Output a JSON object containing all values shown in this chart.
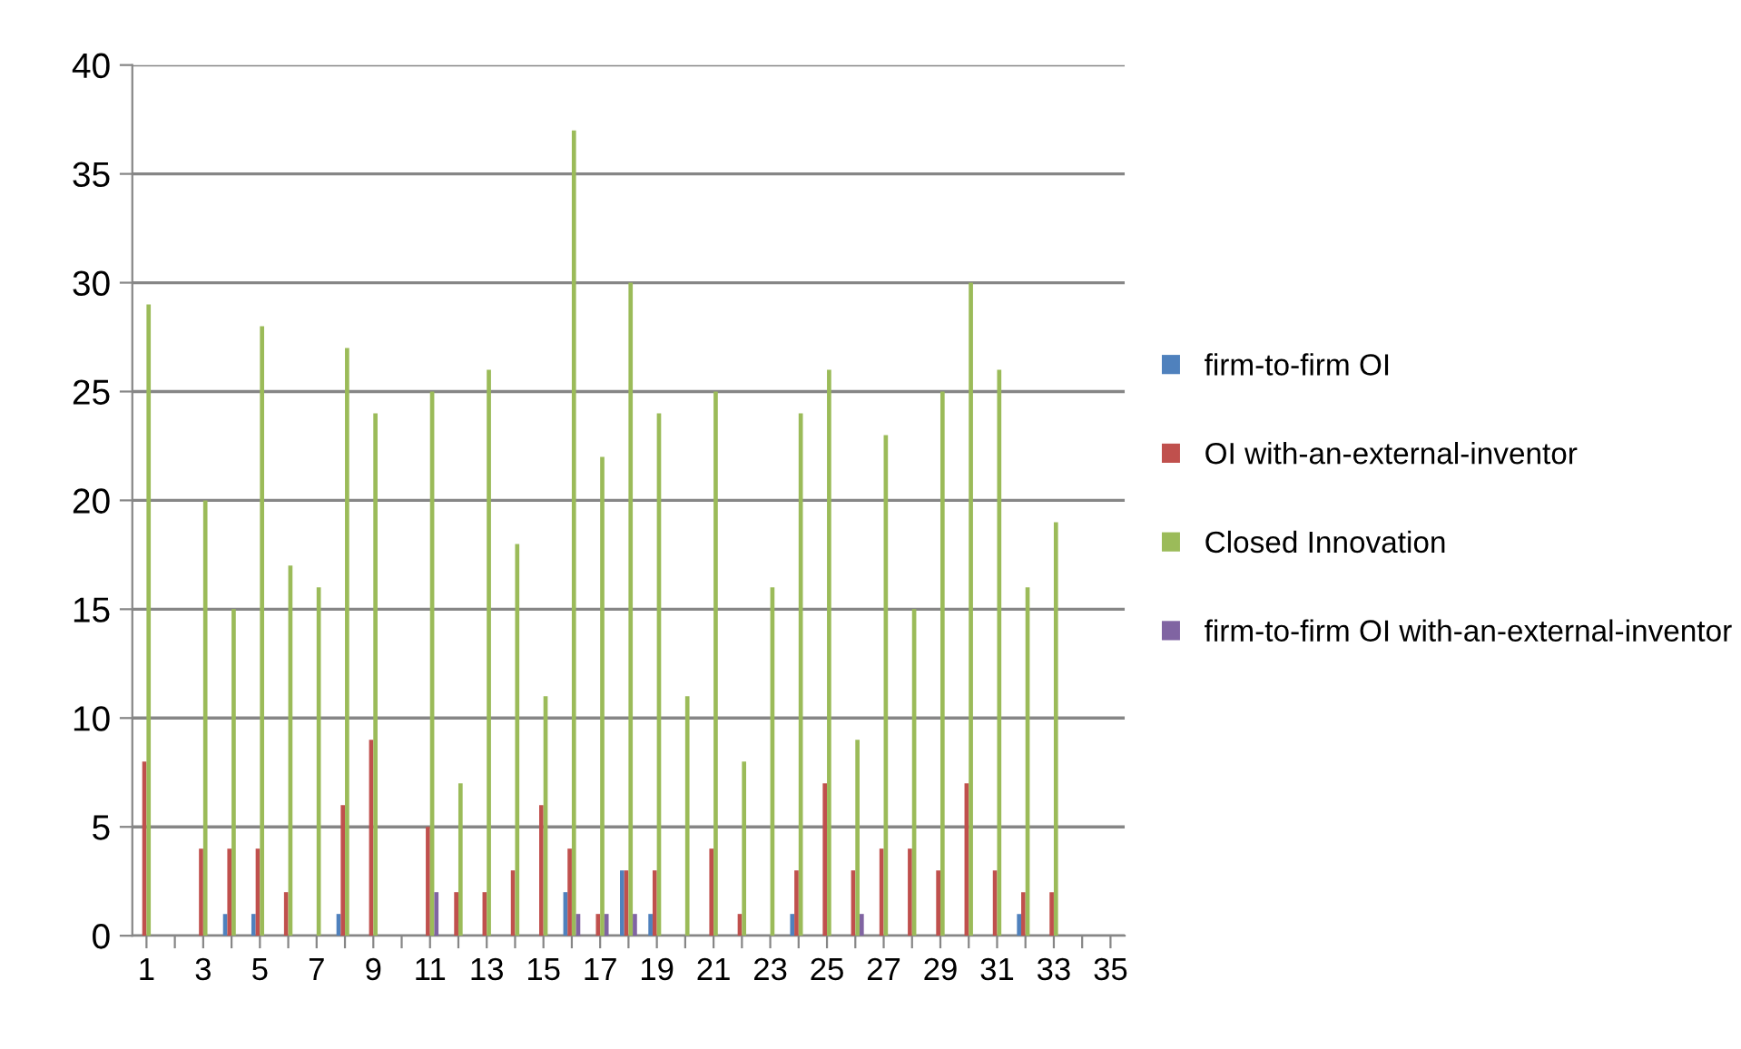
{
  "chart_data": {
    "type": "bar",
    "categories": [
      "1",
      null,
      "3",
      null,
      "5",
      null,
      "7",
      null,
      "9",
      null,
      "11",
      null,
      "13",
      null,
      "15",
      null,
      "17",
      null,
      "19",
      null,
      "21",
      null,
      "23",
      null,
      "25",
      null,
      "27",
      null,
      "29",
      null,
      "31",
      null,
      "33",
      null,
      "35"
    ],
    "series": [
      {
        "name": "firm-to-firm OI",
        "color": "#4f81bd",
        "values": [
          0,
          0,
          0,
          1,
          1,
          0,
          0,
          1,
          0,
          0,
          0,
          0,
          0,
          0,
          0,
          2,
          0,
          3,
          1,
          0,
          0,
          0,
          0,
          1,
          0,
          0,
          0,
          0,
          0,
          0,
          0,
          1,
          0,
          0,
          0
        ]
      },
      {
        "name": "OI with-an-external-inventor",
        "color": "#c0504d",
        "values": [
          8,
          0,
          4,
          4,
          4,
          2,
          0,
          6,
          9,
          0,
          5,
          2,
          2,
          3,
          6,
          4,
          1,
          3,
          3,
          0,
          4,
          1,
          0,
          3,
          7,
          3,
          4,
          4,
          3,
          7,
          3,
          2,
          2,
          0,
          0
        ]
      },
      {
        "name": "Closed Innovation",
        "color": "#9bbb59",
        "values": [
          29,
          0,
          20,
          15,
          28,
          17,
          16,
          27,
          24,
          0,
          25,
          7,
          26,
          18,
          11,
          37,
          22,
          30,
          24,
          11,
          25,
          8,
          16,
          24,
          26,
          9,
          23,
          15,
          25,
          30,
          26,
          16,
          19,
          0,
          0
        ]
      },
      {
        "name": "firm-to-firm OI with-an-external-inventor",
        "color": "#8064a2",
        "values": [
          0,
          0,
          0,
          0,
          0,
          0,
          0,
          0,
          0,
          0,
          2,
          0,
          0,
          0,
          0,
          1,
          1,
          1,
          0,
          0,
          0,
          0,
          0,
          0,
          0,
          1,
          0,
          0,
          0,
          0,
          0,
          0,
          0,
          0,
          0
        ]
      }
    ],
    "ylim": [
      0,
      40
    ],
    "yticks": [
      0,
      5,
      10,
      15,
      20,
      25,
      30,
      35,
      40
    ],
    "grid": "y",
    "legend": "right"
  }
}
